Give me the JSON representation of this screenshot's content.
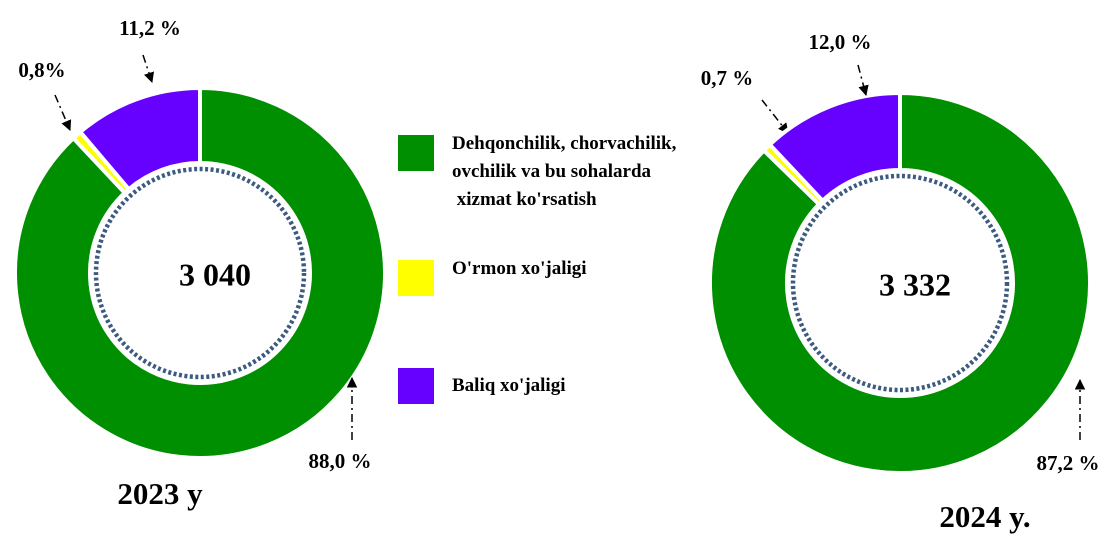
{
  "chart_data": [
    {
      "type": "donut",
      "categories": [
        "Dehqonchilik, chorvachilik,\novchilik va bu sohalarda\n xizmat ko'rsatish",
        "O'rmon xo'jaligi",
        "Baliq xo'jaligi"
      ],
      "colors": [
        "#008f00",
        "#ffff00",
        "#6600ff"
      ],
      "values": [
        88.0,
        0.8,
        11.2
      ],
      "value_labels": [
        "88,0 %",
        "0,8%",
        "11,2 %"
      ],
      "center_label": "3 040",
      "year_label": "2023 y"
    },
    {
      "type": "donut",
      "values": [
        87.2,
        0.7,
        12.0
      ],
      "value_labels": [
        "87,2 %",
        "0,7 %",
        "12,0 %"
      ],
      "center_label": "3 332",
      "year_label": "2024 y."
    }
  ]
}
